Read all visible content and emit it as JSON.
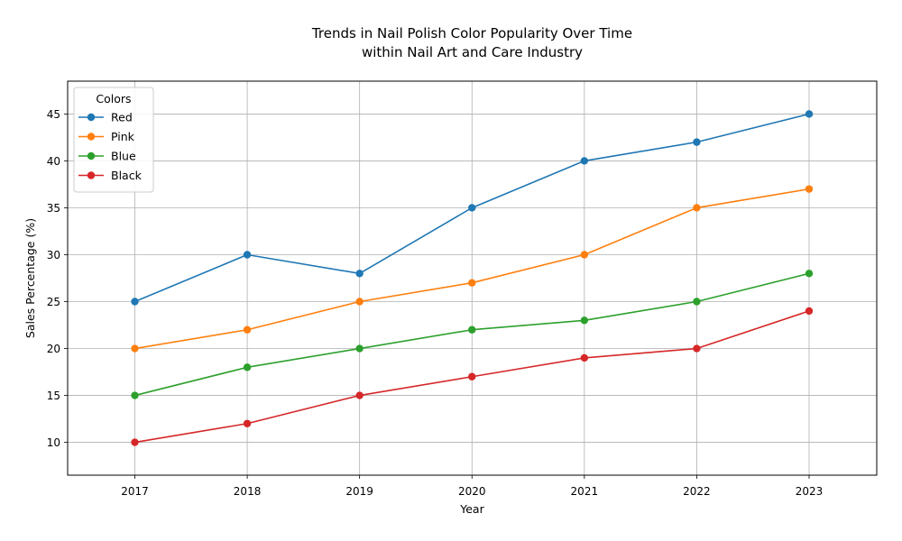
{
  "chart_data": {
    "type": "line",
    "title": "Trends in Nail Polish Color Popularity Over Time",
    "subtitle": "within Nail Art and Care Industry",
    "xlabel": "Year",
    "ylabel": "Sales Percentage (%)",
    "categories": [
      "2017",
      "2018",
      "2019",
      "2020",
      "2021",
      "2022",
      "2023"
    ],
    "ylim": [
      6.5,
      48.5
    ],
    "yticks": [
      10,
      15,
      20,
      25,
      30,
      35,
      40,
      45
    ],
    "grid": true,
    "legend": {
      "title": "Colors",
      "position": "top-left"
    },
    "series": [
      {
        "name": "Red",
        "color": "#1f77b4",
        "values": [
          25,
          30,
          28,
          35,
          40,
          42,
          45
        ]
      },
      {
        "name": "Pink",
        "color": "#ff7f0e",
        "values": [
          20,
          22,
          25,
          27,
          30,
          35,
          37
        ]
      },
      {
        "name": "Blue",
        "color": "#2ca02c",
        "values": [
          15,
          18,
          20,
          22,
          23,
          25,
          28
        ]
      },
      {
        "name": "Black",
        "color": "#d62728",
        "values": [
          10,
          12,
          15,
          17,
          19,
          20,
          24
        ]
      }
    ]
  }
}
